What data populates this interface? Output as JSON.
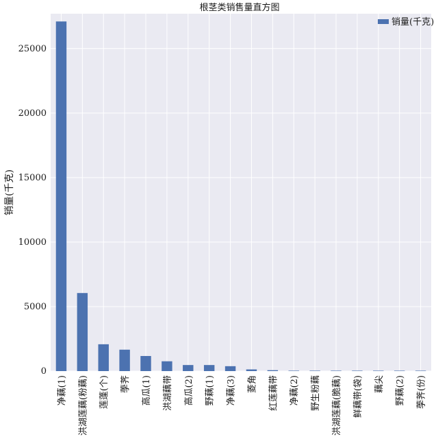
{
  "chart_data": {
    "type": "bar",
    "title": "根茎类销售量直方图",
    "ylabel": "销量(千克)",
    "xlabel": "",
    "categories": [
      "净藕(1)",
      "洪湖莲藕(粉藕)",
      "莲蓬(个)",
      "荸荠",
      "高瓜(1)",
      "洪湖藕带",
      "高瓜(2)",
      "野藕(1)",
      "净藕(3)",
      "菱角",
      "红莲藕带",
      "净藕(2)",
      "野生粉藕",
      "洪湖莲藕(脆藕)",
      "鲜藕带(袋)",
      "藕尖",
      "野藕(2)",
      "荸荠(份)"
    ],
    "series": [
      {
        "name": "销量(千克)",
        "values": [
          27100,
          6050,
          2080,
          1660,
          1170,
          760,
          470,
          470,
          380,
          130,
          70,
          20,
          10,
          8,
          6,
          5,
          4,
          3
        ]
      }
    ],
    "ylim": [
      0,
      27700
    ],
    "yticks": [
      0,
      5000,
      10000,
      15000,
      20000,
      25000
    ],
    "grid": true,
    "legend_position": "top-right",
    "colors": {
      "bar": "#4c72b0",
      "plot_background": "#eaeaf2",
      "grid": "#ffffff"
    }
  }
}
